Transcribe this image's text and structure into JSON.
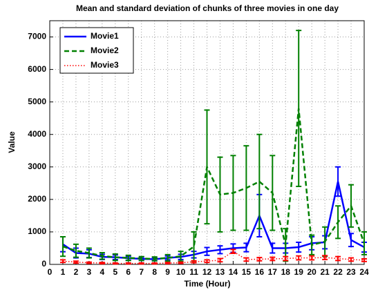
{
  "chart_data": {
    "type": "line",
    "title": "Mean and standard deviation of chunks of three movies in one day",
    "x_label": "Time (Hour)",
    "y_label": "Value",
    "x": [
      1,
      2,
      3,
      4,
      5,
      6,
      7,
      8,
      9,
      10,
      11,
      12,
      13,
      14,
      15,
      16,
      17,
      18,
      19,
      20,
      21,
      22,
      23,
      24
    ],
    "series": [
      {
        "name": "Movie1",
        "color": "#0000ff",
        "style": "solid",
        "values": [
          620,
          350,
          330,
          230,
          220,
          190,
          170,
          160,
          200,
          230,
          300,
          400,
          450,
          500,
          520,
          1500,
          500,
          500,
          530,
          650,
          680,
          2550,
          750,
          530
        ],
        "errors": [
          230,
          150,
          120,
          80,
          70,
          60,
          50,
          50,
          60,
          80,
          100,
          120,
          120,
          130,
          130,
          650,
          150,
          150,
          150,
          200,
          200,
          450,
          200,
          150
        ]
      },
      {
        "name": "Movie2",
        "color": "#008000",
        "style": "dashed",
        "values": [
          550,
          420,
          350,
          260,
          220,
          200,
          180,
          170,
          200,
          250,
          550,
          3000,
          2150,
          2200,
          2350,
          2550,
          2200,
          600,
          4800,
          600,
          700,
          1300,
          1800,
          650
        ],
        "errors": [
          300,
          200,
          150,
          100,
          100,
          80,
          60,
          60,
          100,
          150,
          450,
          1750,
          1150,
          1150,
          1300,
          1450,
          1150,
          500,
          2400,
          300,
          450,
          500,
          650,
          350
        ]
      },
      {
        "name": "Movie3",
        "color": "#ff0000",
        "style": "dotted",
        "values": [
          100,
          70,
          50,
          40,
          30,
          30,
          30,
          30,
          40,
          50,
          80,
          100,
          130,
          400,
          150,
          160,
          170,
          180,
          200,
          200,
          210,
          180,
          150,
          130
        ],
        "errors": [
          40,
          30,
          20,
          20,
          15,
          15,
          15,
          15,
          20,
          20,
          30,
          40,
          50,
          60,
          50,
          50,
          50,
          60,
          60,
          60,
          60,
          60,
          50,
          40
        ]
      }
    ],
    "xlim": [
      0,
      24
    ],
    "ylim": [
      0,
      7500
    ],
    "xticks": [
      0,
      1,
      2,
      3,
      4,
      5,
      6,
      7,
      8,
      9,
      10,
      11,
      12,
      13,
      14,
      15,
      16,
      17,
      18,
      19,
      20,
      21,
      22,
      23,
      24
    ],
    "yticks": [
      0,
      1000,
      2000,
      3000,
      4000,
      5000,
      6000,
      7000
    ],
    "grid": true,
    "legend": "upper-left"
  }
}
